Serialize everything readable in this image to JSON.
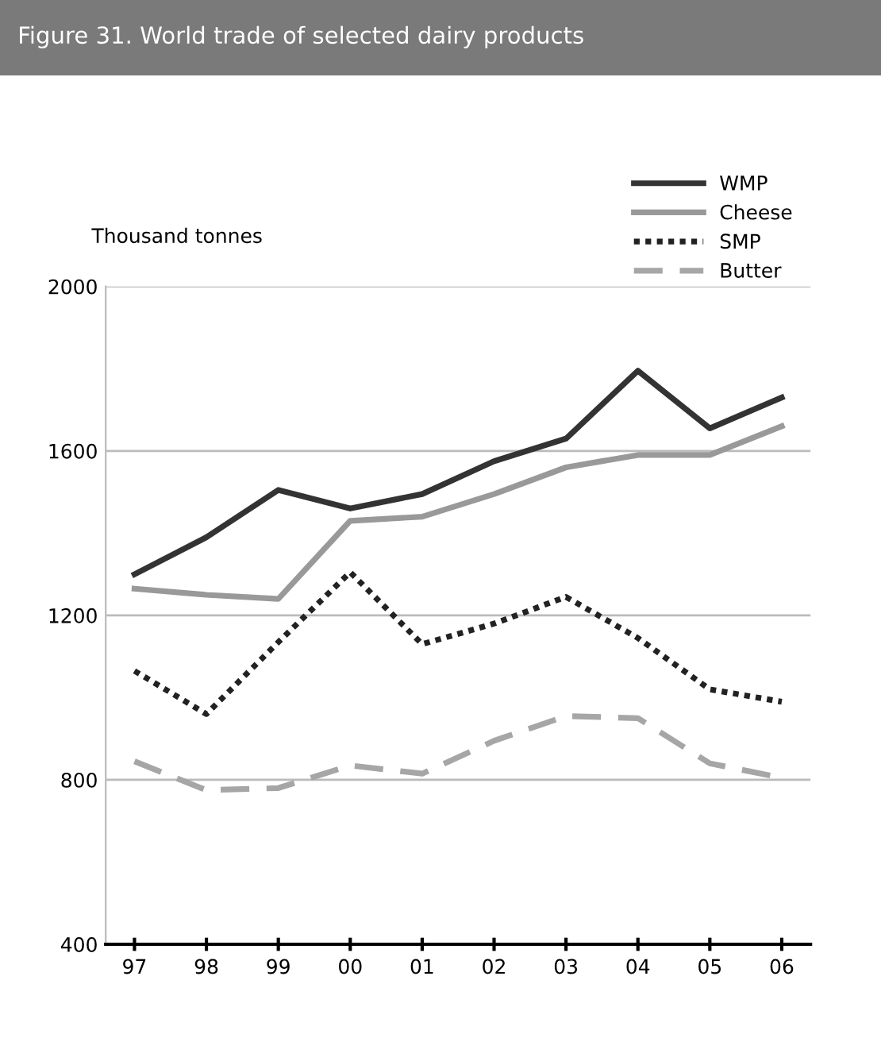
{
  "chart_data": {
    "type": "line",
    "title": "Figure 31. World trade of selected dairy products",
    "ylabel": "Thousand tonnes",
    "categories": [
      "97",
      "98",
      "99",
      "00",
      "01",
      "02",
      "03",
      "04",
      "05",
      "06"
    ],
    "series": [
      {
        "name": "WMP",
        "color": "#333333",
        "line_style": "solid",
        "values": [
          1300,
          1390,
          1505,
          1460,
          1495,
          1575,
          1630,
          1795,
          1655,
          1730
        ]
      },
      {
        "name": "Cheese",
        "color": "#999999",
        "line_style": "solid",
        "values": [
          1265,
          1250,
          1240,
          1430,
          1440,
          1495,
          1560,
          1590,
          1590,
          1660
        ]
      },
      {
        "name": "SMP",
        "color": "#222222",
        "line_style": "dotted",
        "values": [
          1065,
          960,
          1135,
          1305,
          1130,
          1180,
          1245,
          1145,
          1020,
          990
        ]
      },
      {
        "name": "Butter",
        "color": "#a6a6a6",
        "line_style": "dashed",
        "values": [
          845,
          775,
          780,
          835,
          815,
          895,
          955,
          950,
          840,
          805
        ]
      }
    ],
    "ylim": [
      400,
      2000
    ],
    "yticks": [
      400,
      800,
      1200,
      1600,
      2000
    ],
    "grid": "y",
    "legend": "top right"
  }
}
